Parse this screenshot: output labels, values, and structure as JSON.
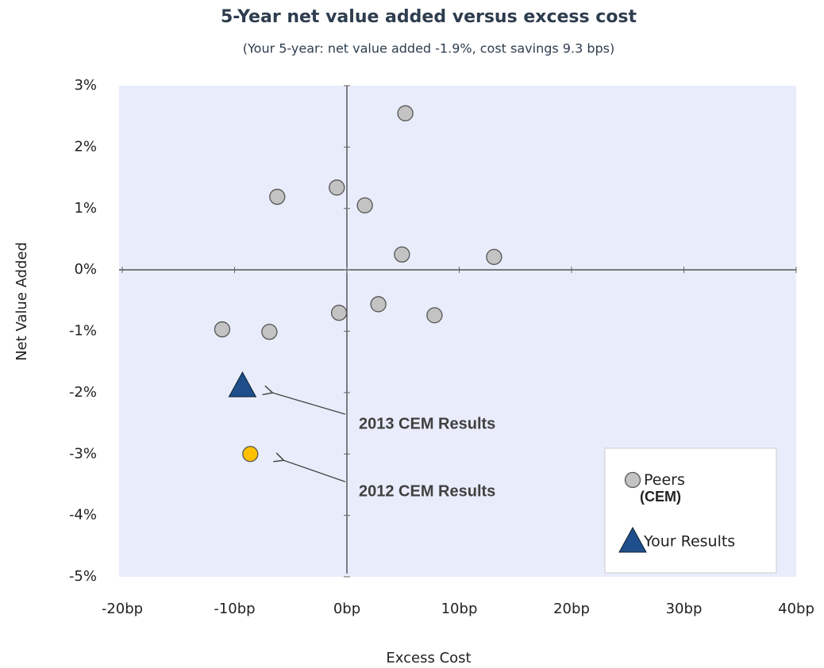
{
  "chart_data": {
    "type": "scatter",
    "title": "5-Year net value added versus excess cost",
    "subtitle": "(Your 5-year: net value added -1.9%, cost savings 9.3 bps)",
    "x_label": "Excess Cost",
    "y_label": "Net Value Added",
    "xlim": [
      -20,
      40
    ],
    "ylim": [
      -5,
      3
    ],
    "xticks": [
      {
        "value": -20,
        "label": "-20bp"
      },
      {
        "value": -10,
        "label": "-10bp"
      },
      {
        "value": 0,
        "label": "0bp"
      },
      {
        "value": 10,
        "label": "10bp"
      },
      {
        "value": 20,
        "label": "20bp"
      },
      {
        "value": 30,
        "label": "30bp"
      },
      {
        "value": 40,
        "label": "40bp"
      }
    ],
    "yticks": [
      {
        "value": 3,
        "label": "3%"
      },
      {
        "value": 2,
        "label": "2%"
      },
      {
        "value": 1,
        "label": "1%"
      },
      {
        "value": 0,
        "label": "0%"
      },
      {
        "value": -1,
        "label": "-1%"
      },
      {
        "value": -2,
        "label": "-2%"
      },
      {
        "value": -3,
        "label": "-3%"
      },
      {
        "value": -4,
        "label": "-4%"
      },
      {
        "value": -5,
        "label": "-5%"
      }
    ],
    "background": "#e9edfb",
    "series": [
      {
        "name": "Peers (CEM)",
        "color": "#c3c3c3",
        "marker": "circle",
        "x": [
          5.2,
          -6.2,
          -0.9,
          1.6,
          4.9,
          13.1,
          2.8,
          -0.7,
          7.8,
          -11.1,
          -6.9
        ],
        "values": [
          2.55,
          1.19,
          1.34,
          1.05,
          0.25,
          0.21,
          -0.56,
          -0.7,
          -0.74,
          -0.97,
          -1.01
        ]
      },
      {
        "name": "Your Results",
        "color": "#1f4e8c",
        "marker": "triangle",
        "x": [
          -9.3,
          -8.6
        ],
        "values": [
          -1.9,
          -3.0
        ],
        "colors": [
          "#1f4e8c",
          "#ffc000"
        ],
        "markers": [
          "triangle",
          "circle"
        ]
      }
    ],
    "annotations": [
      {
        "text": "2013 CEM Results"
      },
      {
        "text": "2012 CEM Results"
      }
    ]
  }
}
